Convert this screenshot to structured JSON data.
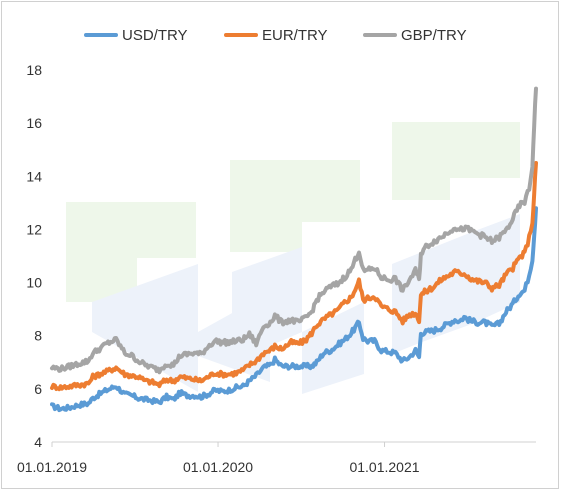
{
  "chart_data": {
    "type": "line",
    "title": "",
    "xlabel": "",
    "ylabel": "",
    "ylim": [
      4,
      18
    ],
    "xlim": [
      "2019-01-01",
      "2021-11-30"
    ],
    "y_ticks": [
      4,
      6,
      8,
      10,
      12,
      14,
      16,
      18
    ],
    "x_ticks": [
      {
        "date": "2019-01-01",
        "label": "01.01.2019"
      },
      {
        "date": "2020-01-01",
        "label": "01.01.2020"
      },
      {
        "date": "2021-01-01",
        "label": "01.01.2021"
      }
    ],
    "grid": false,
    "legend_position": "top",
    "series": [
      {
        "name": "USD/TRY",
        "color": "#5b9bd5",
        "points": [
          [
            "2019-01-01",
            5.35
          ],
          [
            "2019-01-20",
            5.25
          ],
          [
            "2019-02-10",
            5.3
          ],
          [
            "2019-03-01",
            5.4
          ],
          [
            "2019-03-22",
            5.45
          ],
          [
            "2019-04-01",
            5.65
          ],
          [
            "2019-04-15",
            5.8
          ],
          [
            "2019-05-01",
            5.95
          ],
          [
            "2019-05-22",
            6.1
          ],
          [
            "2019-06-10",
            5.8
          ],
          [
            "2019-06-25",
            5.75
          ],
          [
            "2019-07-10",
            5.65
          ],
          [
            "2019-07-25",
            5.6
          ],
          [
            "2019-08-10",
            5.55
          ],
          [
            "2019-08-25",
            5.5
          ],
          [
            "2019-09-10",
            5.7
          ],
          [
            "2019-09-25",
            5.6
          ],
          [
            "2019-10-10",
            5.85
          ],
          [
            "2019-10-25",
            5.75
          ],
          [
            "2019-11-10",
            5.75
          ],
          [
            "2019-11-25",
            5.7
          ],
          [
            "2019-12-10",
            5.8
          ],
          [
            "2019-12-25",
            5.95
          ],
          [
            "2020-01-10",
            5.9
          ],
          [
            "2020-01-25",
            5.95
          ],
          [
            "2020-02-10",
            6.05
          ],
          [
            "2020-02-25",
            6.1
          ],
          [
            "2020-03-10",
            6.3
          ],
          [
            "2020-03-25",
            6.5
          ],
          [
            "2020-04-10",
            6.8
          ],
          [
            "2020-04-25",
            6.9
          ],
          [
            "2020-05-05",
            7.1
          ],
          [
            "2020-05-20",
            6.85
          ],
          [
            "2020-06-10",
            6.85
          ],
          [
            "2020-06-25",
            6.85
          ],
          [
            "2020-07-10",
            6.85
          ],
          [
            "2020-07-25",
            6.85
          ],
          [
            "2020-08-05",
            7.0
          ],
          [
            "2020-08-20",
            7.35
          ],
          [
            "2020-09-05",
            7.45
          ],
          [
            "2020-09-20",
            7.65
          ],
          [
            "2020-10-05",
            7.85
          ],
          [
            "2020-10-20",
            8.1
          ],
          [
            "2020-11-06",
            8.5
          ],
          [
            "2020-11-15",
            7.9
          ],
          [
            "2020-11-25",
            7.8
          ],
          [
            "2020-12-10",
            7.8
          ],
          [
            "2020-12-25",
            7.45
          ],
          [
            "2021-01-10",
            7.4
          ],
          [
            "2021-01-25",
            7.35
          ],
          [
            "2021-02-10",
            7.05
          ],
          [
            "2021-02-25",
            7.2
          ],
          [
            "2021-03-10",
            7.45
          ],
          [
            "2021-03-18",
            7.2
          ],
          [
            "2021-03-22",
            8.1
          ],
          [
            "2021-04-05",
            8.15
          ],
          [
            "2021-04-20",
            8.2
          ],
          [
            "2021-05-05",
            8.3
          ],
          [
            "2021-05-20",
            8.45
          ],
          [
            "2021-06-05",
            8.6
          ],
          [
            "2021-06-15",
            8.55
          ],
          [
            "2021-06-25",
            8.7
          ],
          [
            "2021-07-10",
            8.55
          ],
          [
            "2021-07-25",
            8.5
          ],
          [
            "2021-08-10",
            8.5
          ],
          [
            "2021-08-25",
            8.35
          ],
          [
            "2021-09-10",
            8.45
          ],
          [
            "2021-09-25",
            8.9
          ],
          [
            "2021-10-10",
            9.2
          ],
          [
            "2021-10-25",
            9.6
          ],
          [
            "2021-11-05",
            9.7
          ],
          [
            "2021-11-15",
            10.3
          ],
          [
            "2021-11-22",
            10.9
          ],
          [
            "2021-11-26",
            11.8
          ],
          [
            "2021-11-30",
            12.8
          ]
        ]
      },
      {
        "name": "EUR/TRY",
        "color": "#ed7d31",
        "points": [
          [
            "2019-01-01",
            6.1
          ],
          [
            "2019-01-20",
            6.05
          ],
          [
            "2019-02-10",
            6.1
          ],
          [
            "2019-03-01",
            6.15
          ],
          [
            "2019-03-22",
            6.2
          ],
          [
            "2019-04-01",
            6.45
          ],
          [
            "2019-04-15",
            6.55
          ],
          [
            "2019-05-01",
            6.65
          ],
          [
            "2019-05-22",
            6.8
          ],
          [
            "2019-06-10",
            6.55
          ],
          [
            "2019-06-25",
            6.5
          ],
          [
            "2019-07-10",
            6.45
          ],
          [
            "2019-07-25",
            6.3
          ],
          [
            "2019-08-10",
            6.25
          ],
          [
            "2019-08-25",
            6.15
          ],
          [
            "2019-09-10",
            6.35
          ],
          [
            "2019-09-25",
            6.3
          ],
          [
            "2019-10-10",
            6.45
          ],
          [
            "2019-10-25",
            6.4
          ],
          [
            "2019-11-10",
            6.35
          ],
          [
            "2019-11-25",
            6.3
          ],
          [
            "2019-12-10",
            6.45
          ],
          [
            "2019-12-25",
            6.6
          ],
          [
            "2020-01-10",
            6.55
          ],
          [
            "2020-01-25",
            6.55
          ],
          [
            "2020-02-10",
            6.6
          ],
          [
            "2020-02-25",
            6.7
          ],
          [
            "2020-03-10",
            6.9
          ],
          [
            "2020-03-25",
            7.05
          ],
          [
            "2020-04-10",
            7.35
          ],
          [
            "2020-04-25",
            7.45
          ],
          [
            "2020-05-05",
            7.6
          ],
          [
            "2020-05-20",
            7.5
          ],
          [
            "2020-06-10",
            7.75
          ],
          [
            "2020-06-25",
            7.7
          ],
          [
            "2020-07-10",
            7.8
          ],
          [
            "2020-07-25",
            8.1
          ],
          [
            "2020-08-05",
            8.4
          ],
          [
            "2020-08-20",
            8.6
          ],
          [
            "2020-09-05",
            8.8
          ],
          [
            "2020-09-20",
            8.95
          ],
          [
            "2020-10-05",
            9.25
          ],
          [
            "2020-10-20",
            9.45
          ],
          [
            "2020-11-06",
            10.05
          ],
          [
            "2020-11-15",
            9.35
          ],
          [
            "2020-11-25",
            9.4
          ],
          [
            "2020-12-10",
            9.5
          ],
          [
            "2020-12-25",
            9.1
          ],
          [
            "2021-01-10",
            9.0
          ],
          [
            "2021-01-25",
            8.9
          ],
          [
            "2021-02-10",
            8.55
          ],
          [
            "2021-02-25",
            8.8
          ],
          [
            "2021-03-10",
            8.85
          ],
          [
            "2021-03-18",
            8.6
          ],
          [
            "2021-03-22",
            9.55
          ],
          [
            "2021-04-05",
            9.7
          ],
          [
            "2021-04-20",
            9.85
          ],
          [
            "2021-05-05",
            10.1
          ],
          [
            "2021-05-20",
            10.25
          ],
          [
            "2021-06-05",
            10.4
          ],
          [
            "2021-06-15",
            10.35
          ],
          [
            "2021-06-25",
            10.35
          ],
          [
            "2021-07-10",
            10.15
          ],
          [
            "2021-07-25",
            10.05
          ],
          [
            "2021-08-10",
            10.0
          ],
          [
            "2021-08-25",
            9.8
          ],
          [
            "2021-09-10",
            9.9
          ],
          [
            "2021-09-25",
            10.3
          ],
          [
            "2021-10-10",
            10.55
          ],
          [
            "2021-10-25",
            10.95
          ],
          [
            "2021-11-05",
            11.1
          ],
          [
            "2021-11-15",
            11.7
          ],
          [
            "2021-11-22",
            12.3
          ],
          [
            "2021-11-26",
            13.3
          ],
          [
            "2021-11-30",
            14.5
          ]
        ]
      },
      {
        "name": "GBP/TRY",
        "color": "#a5a5a5",
        "points": [
          [
            "2019-01-01",
            6.8
          ],
          [
            "2019-01-20",
            6.75
          ],
          [
            "2019-02-10",
            6.85
          ],
          [
            "2019-03-01",
            6.95
          ],
          [
            "2019-03-22",
            7.05
          ],
          [
            "2019-04-01",
            7.35
          ],
          [
            "2019-04-15",
            7.5
          ],
          [
            "2019-05-01",
            7.7
          ],
          [
            "2019-05-22",
            7.85
          ],
          [
            "2019-06-10",
            7.35
          ],
          [
            "2019-06-25",
            7.25
          ],
          [
            "2019-07-10",
            7.05
          ],
          [
            "2019-07-25",
            6.9
          ],
          [
            "2019-08-10",
            6.8
          ],
          [
            "2019-08-25",
            6.7
          ],
          [
            "2019-09-10",
            6.95
          ],
          [
            "2019-09-25",
            6.9
          ],
          [
            "2019-10-10",
            7.25
          ],
          [
            "2019-10-25",
            7.3
          ],
          [
            "2019-11-10",
            7.35
          ],
          [
            "2019-11-25",
            7.3
          ],
          [
            "2019-12-10",
            7.6
          ],
          [
            "2019-12-25",
            7.8
          ],
          [
            "2020-01-10",
            7.75
          ],
          [
            "2020-01-25",
            7.75
          ],
          [
            "2020-02-10",
            7.8
          ],
          [
            "2020-02-25",
            7.85
          ],
          [
            "2020-03-10",
            8.05
          ],
          [
            "2020-03-25",
            7.7
          ],
          [
            "2020-04-10",
            8.35
          ],
          [
            "2020-04-25",
            8.5
          ],
          [
            "2020-05-05",
            8.75
          ],
          [
            "2020-05-20",
            8.5
          ],
          [
            "2020-06-10",
            8.6
          ],
          [
            "2020-06-25",
            8.5
          ],
          [
            "2020-07-10",
            8.65
          ],
          [
            "2020-07-25",
            8.9
          ],
          [
            "2020-08-05",
            9.35
          ],
          [
            "2020-08-20",
            9.65
          ],
          [
            "2020-09-05",
            9.85
          ],
          [
            "2020-09-20",
            9.95
          ],
          [
            "2020-10-05",
            10.2
          ],
          [
            "2020-10-20",
            10.5
          ],
          [
            "2020-11-06",
            11.2
          ],
          [
            "2020-11-15",
            10.45
          ],
          [
            "2020-11-25",
            10.45
          ],
          [
            "2020-12-10",
            10.55
          ],
          [
            "2020-12-25",
            10.2
          ],
          [
            "2021-01-10",
            10.1
          ],
          [
            "2021-01-25",
            10.15
          ],
          [
            "2021-02-10",
            9.7
          ],
          [
            "2021-02-25",
            10.1
          ],
          [
            "2021-03-10",
            10.45
          ],
          [
            "2021-03-18",
            10.1
          ],
          [
            "2021-03-22",
            11.1
          ],
          [
            "2021-04-05",
            11.4
          ],
          [
            "2021-04-20",
            11.55
          ],
          [
            "2021-05-05",
            11.7
          ],
          [
            "2021-05-20",
            11.9
          ],
          [
            "2021-06-05",
            12.1
          ],
          [
            "2021-06-15",
            11.95
          ],
          [
            "2021-06-25",
            12.05
          ],
          [
            "2021-07-10",
            11.95
          ],
          [
            "2021-07-25",
            11.85
          ],
          [
            "2021-08-10",
            11.7
          ],
          [
            "2021-08-25",
            11.55
          ],
          [
            "2021-09-10",
            11.7
          ],
          [
            "2021-09-25",
            11.95
          ],
          [
            "2021-10-10",
            12.4
          ],
          [
            "2021-10-25",
            12.9
          ],
          [
            "2021-11-05",
            13.05
          ],
          [
            "2021-11-15",
            13.5
          ],
          [
            "2021-11-22",
            14.4
          ],
          [
            "2021-11-26",
            16.0
          ],
          [
            "2021-11-30",
            17.3
          ]
        ]
      }
    ]
  }
}
